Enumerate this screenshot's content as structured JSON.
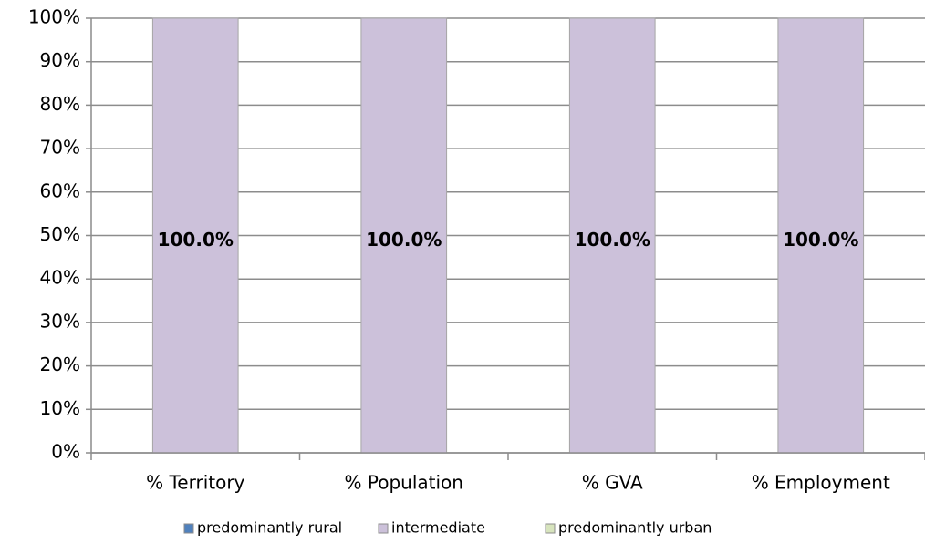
{
  "chart_data": {
    "type": "stacked_bar",
    "categories": [
      "% Territory",
      "% Population",
      "% GVA",
      "% Employment"
    ],
    "series": [
      {
        "name": "predominantly rural",
        "color": "#4f81bd",
        "values": [
          0,
          0,
          0,
          0
        ]
      },
      {
        "name": "intermediate",
        "color": "#ccc1da",
        "values": [
          100,
          100,
          100,
          100
        ],
        "value_labels": [
          "100.0%",
          "100.0%",
          "100.0%",
          "100.0%"
        ]
      },
      {
        "name": "predominantly urban",
        "color": "#d7e4bd",
        "values": [
          0,
          0,
          0,
          0
        ]
      }
    ],
    "ylim": [
      0,
      100
    ],
    "yticks": [
      {
        "value": 0,
        "label": "0%"
      },
      {
        "value": 10,
        "label": "10%"
      },
      {
        "value": 20,
        "label": "20%"
      },
      {
        "value": 30,
        "label": "30%"
      },
      {
        "value": 40,
        "label": "40%"
      },
      {
        "value": 50,
        "label": "50%"
      },
      {
        "value": 60,
        "label": "60%"
      },
      {
        "value": 70,
        "label": "70%"
      },
      {
        "value": 80,
        "label": "80%"
      },
      {
        "value": 90,
        "label": "90%"
      },
      {
        "value": 100,
        "label": "100%"
      }
    ],
    "grid": true,
    "legend": "bottom"
  }
}
